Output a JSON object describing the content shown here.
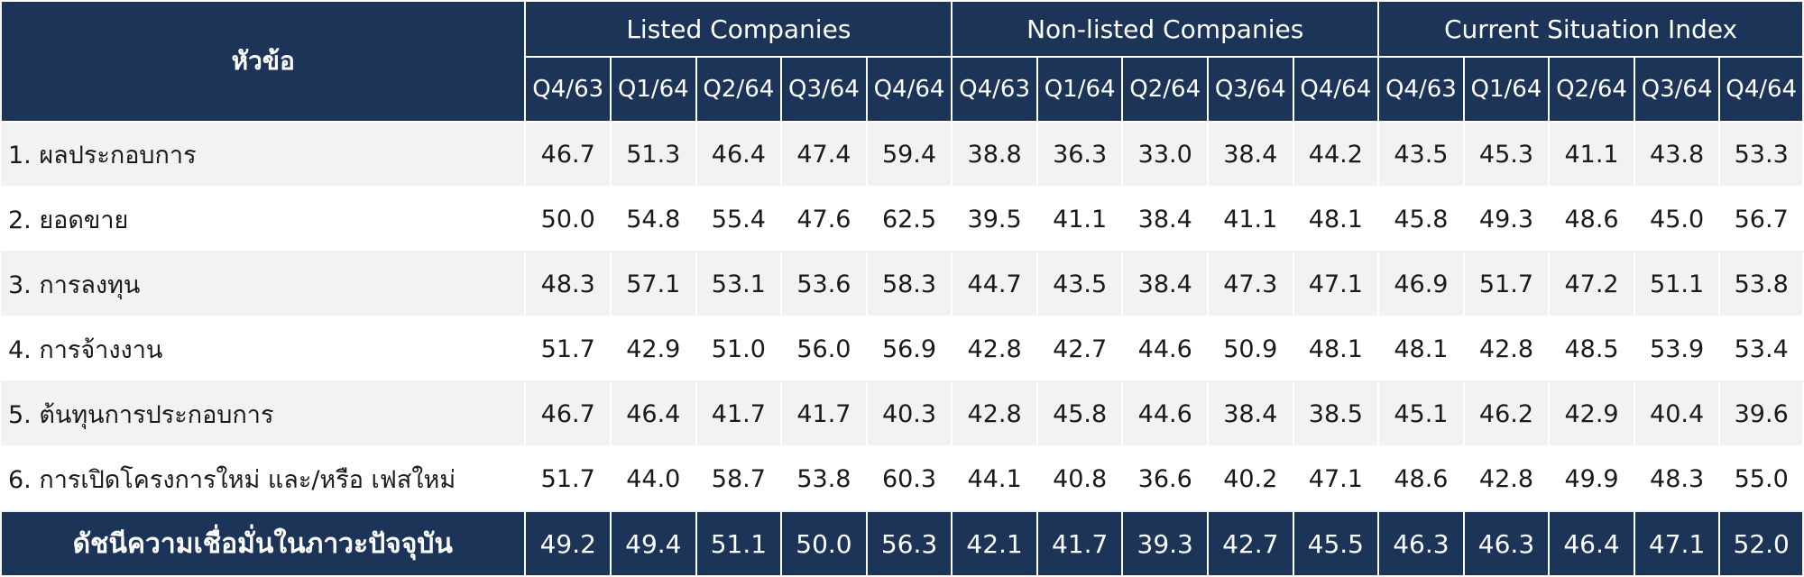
{
  "header": {
    "title": "หัวข้อ",
    "groups": [
      "Listed Companies",
      "Non-listed Companies",
      "Current Situation Index"
    ],
    "quarters": [
      "Q4/63",
      "Q1/64",
      "Q2/64",
      "Q3/64",
      "Q4/64"
    ]
  },
  "rows": [
    {
      "label": "1. ผลประกอบการ",
      "values": [
        "46.7",
        "51.3",
        "46.4",
        "47.4",
        "59.4",
        "38.8",
        "36.3",
        "33.0",
        "38.4",
        "44.2",
        "43.5",
        "45.3",
        "41.1",
        "43.8",
        "53.3"
      ]
    },
    {
      "label": "2. ยอดขาย",
      "values": [
        "50.0",
        "54.8",
        "55.4",
        "47.6",
        "62.5",
        "39.5",
        "41.1",
        "38.4",
        "41.1",
        "48.1",
        "45.8",
        "49.3",
        "48.6",
        "45.0",
        "56.7"
      ]
    },
    {
      "label": "3. การลงทุน",
      "values": [
        "48.3",
        "57.1",
        "53.1",
        "53.6",
        "58.3",
        "44.7",
        "43.5",
        "38.4",
        "47.3",
        "47.1",
        "46.9",
        "51.7",
        "47.2",
        "51.1",
        "53.8"
      ]
    },
    {
      "label": "4. การจ้างงาน",
      "values": [
        "51.7",
        "42.9",
        "51.0",
        "56.0",
        "56.9",
        "42.8",
        "42.7",
        "44.6",
        "50.9",
        "48.1",
        "48.1",
        "42.8",
        "48.5",
        "53.9",
        "53.4"
      ]
    },
    {
      "label": "5. ต้นทุนการประกอบการ",
      "values": [
        "46.7",
        "46.4",
        "41.7",
        "41.7",
        "40.3",
        "42.8",
        "45.8",
        "44.6",
        "38.4",
        "38.5",
        "45.1",
        "46.2",
        "42.9",
        "40.4",
        "39.6"
      ]
    },
    {
      "label": "6. การเปิดโครงการใหม่ และ/หรือ เฟสใหม่",
      "values": [
        "51.7",
        "44.0",
        "58.7",
        "53.8",
        "60.3",
        "44.1",
        "40.8",
        "36.6",
        "40.2",
        "47.1",
        "48.6",
        "42.8",
        "49.9",
        "48.3",
        "55.0"
      ]
    }
  ],
  "total": {
    "label": "ดัชนีความเชื่อมั่นในภาวะปัจจุบัน",
    "values": [
      "49.2",
      "49.4",
      "51.1",
      "50.0",
      "56.3",
      "42.1",
      "41.7",
      "39.3",
      "42.7",
      "45.5",
      "46.3",
      "46.3",
      "46.4",
      "47.1",
      "52.0"
    ]
  },
  "colors": {
    "header_bg": "#1b3458",
    "row_alt_bg": "#f2f2f2"
  }
}
